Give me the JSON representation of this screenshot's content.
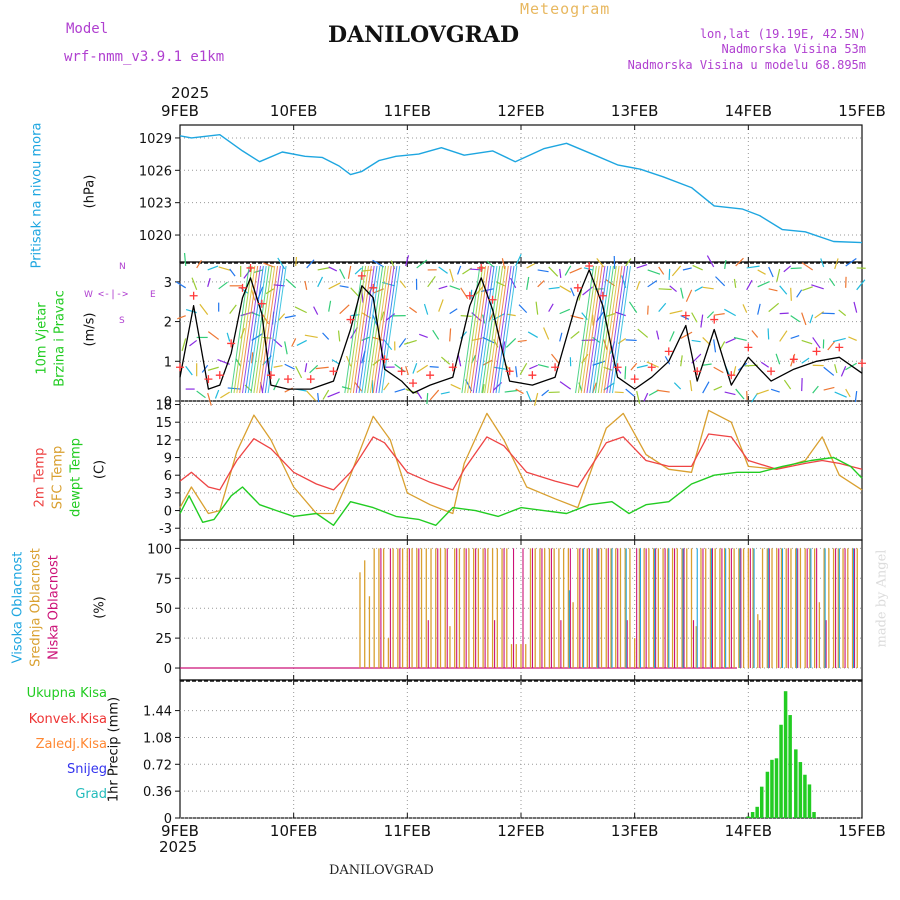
{
  "header": {
    "meteogram_label": "Meteogram",
    "station_title": "DANILOVGRAD",
    "model_label": "Model",
    "model_name": "wrf-nmm_v3.9.1  e1km",
    "location": "lon,lat (19.19E, 42.5N)",
    "elevation": "Nadmorska Visina 53m",
    "model_elevation": "Nadmorska Visina u modelu 68.895m",
    "year": "2025",
    "footer_title": "DANILOVGRAD",
    "credit": "made by Angel"
  },
  "colors": {
    "pressure": "#1ea6e0",
    "wind_speed": "#000000",
    "wind_max": "#ff3a3a",
    "temp_2m": "#ee4444",
    "temp_sfc": "#d9a030",
    "dewpoint": "#22cc22",
    "cloud_high": "#1ea6e0",
    "cloud_mid": "#d9a030",
    "cloud_low": "#cc1177",
    "precip_total": "#22cc22",
    "precip_conv": "#ee3333",
    "precip_frozen": "#ff8833",
    "snow": "#3333ee",
    "graupel": "#22bbbb",
    "title_orange": "#e8b860",
    "violet": "#b040d0"
  },
  "chart_data": [
    {
      "type": "line",
      "panel": "pressure",
      "ylabel": "Pritisak na nivou mora",
      "unit": "(hPa)",
      "x_ticks": [
        "9FEB",
        "10FEB",
        "11FEB",
        "12FEB",
        "13FEB",
        "14FEB",
        "15FEB"
      ],
      "xlim_days": [
        0,
        6
      ],
      "ylim": [
        1017.5,
        1030.2
      ],
      "y_ticks": [
        1020,
        1023,
        1026,
        1029
      ],
      "series": [
        {
          "x": [
            0,
            0.1,
            0.35,
            0.55,
            0.7,
            0.9,
            1.1,
            1.25,
            1.4,
            1.5,
            1.6,
            1.75,
            1.9,
            2.1,
            2.3,
            2.5,
            2.75,
            2.95,
            3.2,
            3.4,
            3.65,
            3.85,
            4.05,
            4.25,
            4.5,
            4.7,
            4.95,
            5.1,
            5.3,
            5.5,
            5.75,
            6
          ],
          "y": [
            1029.2,
            1029.0,
            1029.3,
            1027.8,
            1026.8,
            1027.7,
            1027.3,
            1027.2,
            1026.4,
            1025.6,
            1025.9,
            1026.9,
            1027.3,
            1027.5,
            1028.1,
            1027.4,
            1027.8,
            1026.8,
            1028.0,
            1028.5,
            1027.4,
            1026.5,
            1026.1,
            1025.4,
            1024.4,
            1022.7,
            1022.4,
            1021.8,
            1020.5,
            1020.3,
            1019.4,
            1019.3
          ]
        }
      ]
    },
    {
      "type": "line",
      "panel": "wind",
      "ylabel": "10m Vjetar Brzina i Pravac",
      "unit": "(m/s)",
      "ylim": [
        0,
        3.5
      ],
      "y_ticks": [
        0,
        1,
        2,
        3
      ],
      "compass_labels": [
        "W",
        "E",
        "N",
        "S"
      ],
      "series": [
        {
          "name": "speed",
          "x": [
            0,
            0.12,
            0.25,
            0.35,
            0.45,
            0.55,
            0.62,
            0.72,
            0.8,
            0.95,
            1.15,
            1.35,
            1.5,
            1.6,
            1.7,
            1.8,
            1.95,
            2.05,
            2.2,
            2.4,
            2.55,
            2.65,
            2.75,
            2.9,
            3.1,
            3.3,
            3.5,
            3.6,
            3.72,
            3.85,
            4.0,
            4.15,
            4.3,
            4.45,
            4.55,
            4.7,
            4.85,
            5.0,
            5.2,
            5.4,
            5.6,
            5.8,
            6
          ],
          "y": [
            0.6,
            2.4,
            0.3,
            0.4,
            1.2,
            2.6,
            3.1,
            2.2,
            0.4,
            0.3,
            0.3,
            0.5,
            1.8,
            2.9,
            2.6,
            0.8,
            0.5,
            0.2,
            0.4,
            0.6,
            2.4,
            3.1,
            2.3,
            0.5,
            0.4,
            0.6,
            2.6,
            3.3,
            2.4,
            0.6,
            0.3,
            0.6,
            1.0,
            1.9,
            0.5,
            1.8,
            0.4,
            1.1,
            0.5,
            0.8,
            1.0,
            1.1,
            0.7
          ]
        }
      ]
    },
    {
      "type": "line",
      "panel": "temperature",
      "ylabel": "2m Temp / SFC Temp / dewpt Temp",
      "unit": "(C)",
      "ylim": [
        -5,
        18.6
      ],
      "y_ticks": [
        -3,
        0,
        3,
        6,
        9,
        12,
        15,
        18
      ],
      "series": [
        {
          "name": "2m Temp",
          "x": [
            0,
            0.1,
            0.25,
            0.35,
            0.5,
            0.65,
            0.8,
            1.0,
            1.2,
            1.35,
            1.5,
            1.7,
            1.8,
            2.0,
            2.2,
            2.4,
            2.5,
            2.7,
            2.85,
            3.05,
            3.3,
            3.5,
            3.75,
            3.9,
            4.1,
            4.3,
            4.5,
            4.65,
            4.85,
            5.0,
            5.25,
            5.5,
            5.65,
            5.8,
            6
          ],
          "y": [
            5.0,
            6.5,
            4.0,
            3.5,
            8.5,
            12.2,
            10.5,
            6.5,
            4.5,
            3.5,
            6.5,
            12.5,
            11.5,
            6.5,
            4.8,
            3.5,
            7.0,
            12.5,
            11.0,
            6.5,
            5.0,
            4.0,
            11.5,
            12.5,
            8.5,
            7.5,
            7.5,
            13.0,
            12.5,
            8.5,
            7.0,
            8.0,
            8.5,
            8.0,
            7.0
          ]
        },
        {
          "name": "SFC Temp",
          "x": [
            0,
            0.1,
            0.25,
            0.35,
            0.5,
            0.65,
            0.8,
            1.0,
            1.2,
            1.35,
            1.5,
            1.7,
            1.85,
            2.0,
            2.2,
            2.4,
            2.5,
            2.7,
            2.85,
            3.05,
            3.3,
            3.5,
            3.75,
            3.9,
            4.1,
            4.3,
            4.5,
            4.65,
            4.85,
            5.0,
            5.25,
            5.5,
            5.65,
            5.8,
            6
          ],
          "y": [
            0.5,
            4.0,
            -0.5,
            0.0,
            10.0,
            16.2,
            12.0,
            4.0,
            -0.5,
            -0.5,
            6.0,
            16.0,
            12.0,
            3.0,
            1.0,
            -0.5,
            8.0,
            16.5,
            12.0,
            4.0,
            2.0,
            0.5,
            14.0,
            16.5,
            9.5,
            7.0,
            6.5,
            17.0,
            15.0,
            7.5,
            7.0,
            8.5,
            12.5,
            6.0,
            3.5
          ]
        },
        {
          "name": "dewpt Temp",
          "x": [
            0,
            0.08,
            0.2,
            0.3,
            0.45,
            0.55,
            0.7,
            0.85,
            1.0,
            1.2,
            1.35,
            1.5,
            1.7,
            1.9,
            2.1,
            2.25,
            2.4,
            2.6,
            2.8,
            3.0,
            3.2,
            3.4,
            3.6,
            3.8,
            3.95,
            4.1,
            4.3,
            4.5,
            4.7,
            4.9,
            5.1,
            5.3,
            5.55,
            5.75,
            5.9,
            6
          ],
          "y": [
            -0.5,
            2.5,
            -2.0,
            -1.5,
            2.5,
            4.0,
            1.0,
            0.0,
            -1.0,
            -0.5,
            -2.5,
            1.5,
            0.5,
            -1.0,
            -1.5,
            -2.5,
            0.5,
            0.0,
            -1.0,
            0.5,
            0.0,
            -0.5,
            1.0,
            1.5,
            -0.5,
            1.0,
            1.5,
            4.5,
            6.0,
            6.5,
            6.5,
            7.5,
            8.5,
            9.0,
            7.5,
            5.5
          ]
        }
      ]
    },
    {
      "type": "bar",
      "panel": "cloud",
      "ylabel": "Visoka Oblacnost / Srednja Oblacnost / Niska Oblacnost",
      "unit": "(%)",
      "ylim": [
        -10,
        107
      ],
      "y_ticks": [
        0,
        25,
        50,
        75,
        100
      ],
      "note": "hourly bars, 0% before ~10.55 FEB, mostly 100% mid/low cloud afterwards, high cloud from ~12.3 FEB"
    },
    {
      "type": "bar",
      "panel": "precip",
      "ylabel": "1hr Precip",
      "unit": "(mm)",
      "ylim": [
        0,
        1.85
      ],
      "y_ticks": [
        0,
        0.36,
        0.72,
        1.08,
        1.44
      ],
      "legend": [
        "Ukupna Kisa",
        "Konvek.Kisa",
        "Zaledj.Kisa",
        "Snijeg",
        "Grad"
      ],
      "series": [
        {
          "name": "Ukupna Kisa",
          "x": [
            5.0,
            5.04,
            5.08,
            5.12,
            5.17,
            5.21,
            5.25,
            5.29,
            5.33,
            5.37,
            5.42,
            5.46,
            5.5,
            5.54,
            5.58
          ],
          "values": [
            0.02,
            0.08,
            0.15,
            0.42,
            0.62,
            0.78,
            0.8,
            1.25,
            1.7,
            1.38,
            0.92,
            0.75,
            0.58,
            0.45,
            0.08
          ]
        }
      ]
    }
  ]
}
